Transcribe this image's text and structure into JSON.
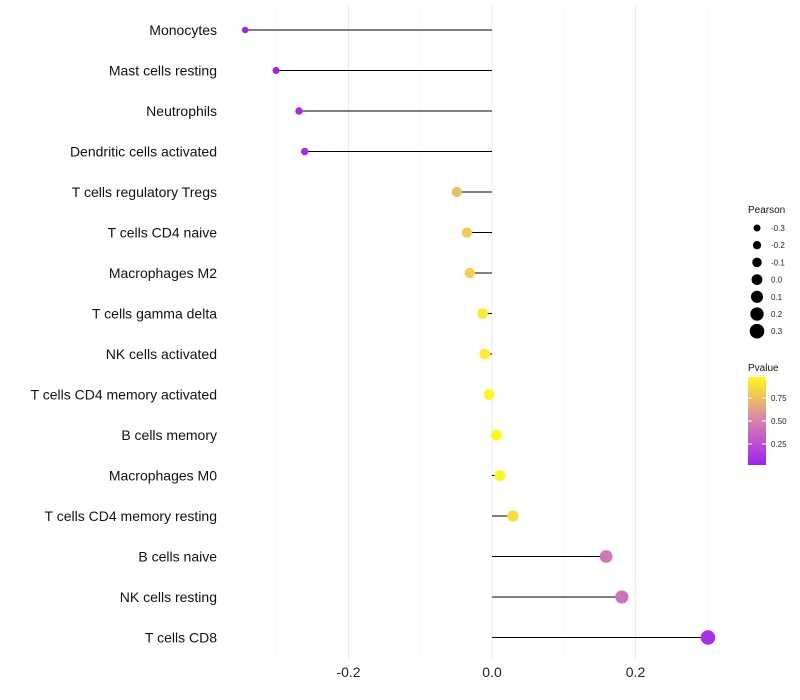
{
  "chart_data": {
    "type": "lollipop",
    "title": "",
    "xlabel": "",
    "ylabel": "",
    "xlim": [
      -0.37,
      0.33
    ],
    "xticks": [
      -0.2,
      0.0,
      0.2
    ],
    "xtick_labels": [
      "-0.2",
      "0.0",
      "0.2"
    ],
    "grid": true,
    "categories": [
      "Monocytes",
      "Mast cells resting",
      "Neutrophils",
      "Dendritic cells activated",
      "T cells regulatory  Tregs",
      "T cells CD4 naive",
      "Macrophages M2",
      "T cells gamma delta",
      "NK cells activated",
      "T cells CD4 memory activated",
      "B cells memory",
      "Macrophages M0",
      "T cells CD4 memory resting",
      "B cells naive",
      "NK cells resting",
      "T cells CD8"
    ],
    "pearson": [
      -0.344,
      -0.301,
      -0.269,
      -0.261,
      -0.049,
      -0.035,
      -0.031,
      -0.013,
      -0.01,
      -0.004,
      0.006,
      0.011,
      0.029,
      0.159,
      0.181,
      0.301
    ],
    "pvalue": [
      0.02,
      0.03,
      0.06,
      0.08,
      0.75,
      0.8,
      0.82,
      0.92,
      0.94,
      0.97,
      0.98,
      0.97,
      0.88,
      0.45,
      0.42,
      0.1
    ],
    "legend_size": {
      "title": "Pearson",
      "values": [
        -0.3,
        -0.2,
        -0.1,
        0.0,
        0.1,
        0.2,
        0.3
      ],
      "labels": [
        "-0.3",
        "-0.2",
        "-0.1",
        "0.0",
        "0.1",
        "0.2",
        "0.3"
      ]
    },
    "legend_color": {
      "title": "Pvalue",
      "labels": [
        "0.75",
        "0.50",
        "0.25"
      ],
      "values": [
        0.75,
        0.5,
        0.25
      ],
      "range": [
        0.02,
        0.98
      ],
      "colors": [
        "#a020f0",
        "#d880b0",
        "#fff81a"
      ]
    },
    "legend_placement": "right"
  }
}
